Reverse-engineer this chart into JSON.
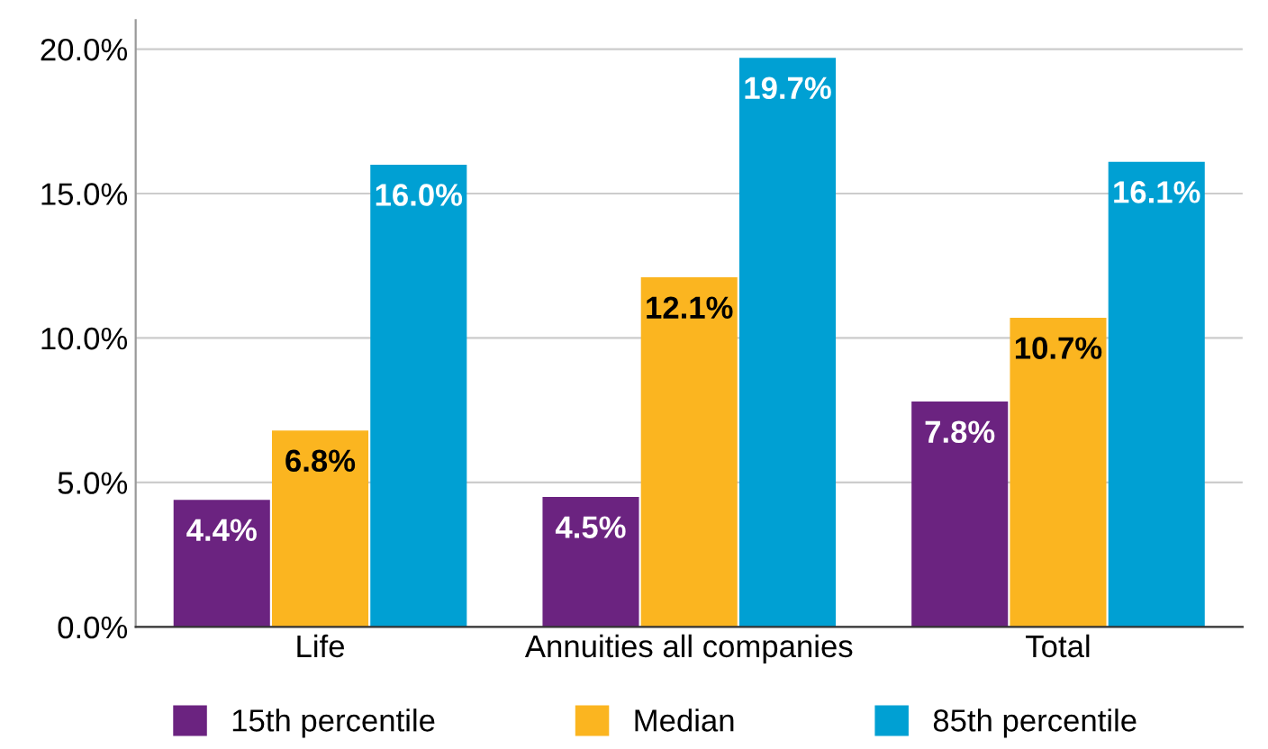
{
  "chart_data": {
    "type": "bar",
    "categories": [
      "Life",
      "Annuities all companies",
      "Total"
    ],
    "series": [
      {
        "name": "15th percentile",
        "color": "#6b2380",
        "values": [
          4.4,
          4.5,
          7.8
        ],
        "value_labels": [
          "4.4%",
          "4.5%",
          "7.8%"
        ]
      },
      {
        "name": "Median",
        "color": "#fbb520",
        "values": [
          6.8,
          12.1,
          10.7
        ],
        "value_labels": [
          "6.8%",
          "12.1%",
          "10.7%"
        ]
      },
      {
        "name": "85th percentile",
        "color": "#00a0d3",
        "values": [
          16.0,
          19.7,
          16.1
        ],
        "value_labels": [
          "16.0%",
          "19.7%",
          "16.1%"
        ]
      }
    ],
    "ylim": [
      0,
      21
    ],
    "yticks": [
      {
        "value": 0,
        "label": "0.0%"
      },
      {
        "value": 5,
        "label": "5.0%"
      },
      {
        "value": 10,
        "label": "10.0%"
      },
      {
        "value": 15,
        "label": "15.0%"
      },
      {
        "value": 20,
        "label": "20.0%"
      }
    ],
    "grid": "y",
    "legend": "bottom"
  }
}
